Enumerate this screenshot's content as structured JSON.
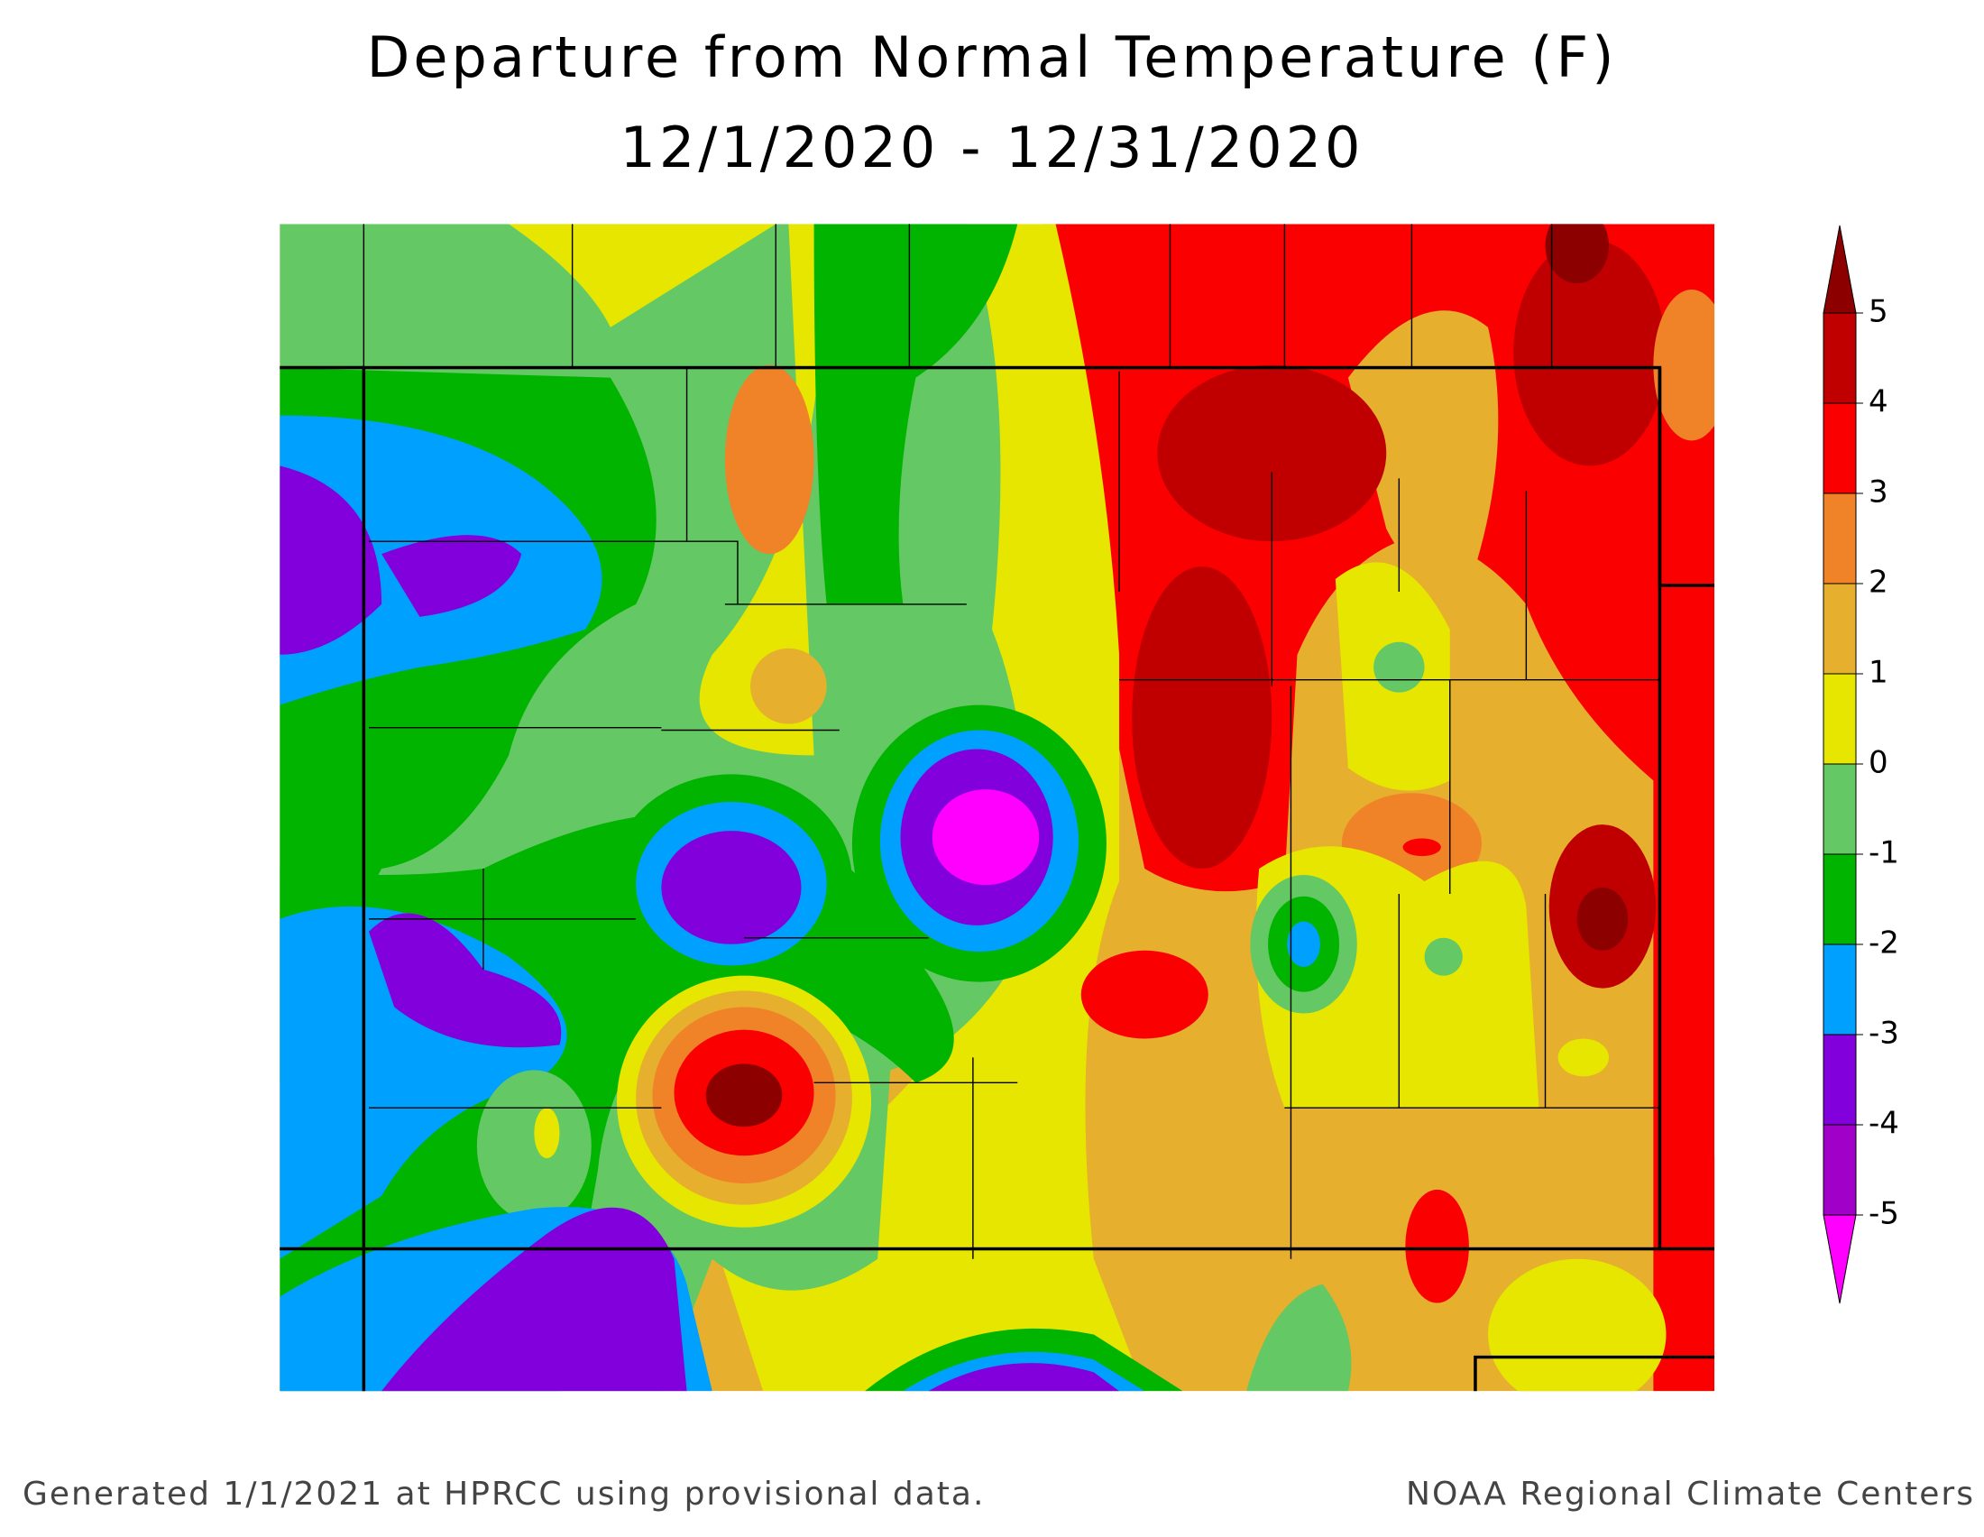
{
  "title": [
    "Departure from Normal Temperature (F)",
    "12/1/2020 - 12/31/2020"
  ],
  "legend": {
    "ticks": [
      5,
      4,
      3,
      2,
      1,
      0,
      -1,
      -2,
      -3,
      -4,
      -5
    ],
    "colors": [
      "#8c0000",
      "#c00000",
      "#fa0000",
      "#f08228",
      "#e6af2d",
      "#e6e600",
      "#64c864",
      "#00b400",
      "#00a0ff",
      "#8200dc",
      "#a000c8",
      "#ff00ff"
    ]
  },
  "footer": {
    "left": "Generated 1/1/2021 at HPRCC using provisional data.",
    "right": "NOAA Regional Climate Centers"
  }
}
